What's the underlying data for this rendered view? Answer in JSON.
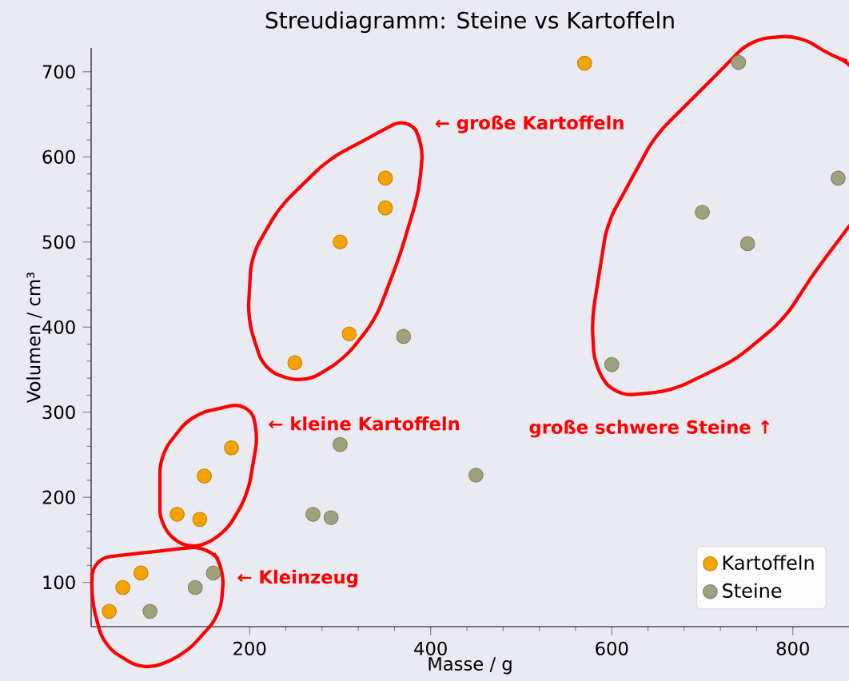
{
  "chart_data": {
    "type": "scatter",
    "title": "Streudiagramm: Steine vs Kartoffeln",
    "xlabel": "Masse / g",
    "ylabel": "Volumen / cm³",
    "xlim": [
      25,
      862
    ],
    "ylim": [
      48,
      728
    ],
    "xticks": [
      200,
      400,
      600,
      800
    ],
    "yticks": [
      100,
      200,
      300,
      400,
      500,
      600,
      700
    ],
    "grid": false,
    "legend": "bottom right",
    "marker": "circle",
    "series": [
      {
        "name": "Kartoffeln",
        "color": "#f5a300",
        "x": [
          570,
          350,
          350,
          300,
          310,
          250,
          180,
          150,
          120,
          145,
          80,
          60,
          45
        ],
        "values": [
          710,
          575,
          540,
          500,
          392,
          358,
          258,
          225,
          180,
          174,
          111,
          94,
          66
        ]
      },
      {
        "name": "Steine",
        "color": "#a0a07c",
        "x": [
          90,
          140,
          160,
          270,
          290,
          300,
          370,
          450,
          600,
          740,
          850,
          700,
          750
        ],
        "values": [
          66,
          94,
          111,
          180,
          176,
          262,
          389,
          226,
          356,
          711,
          575,
          535,
          498
        ]
      }
    ],
    "annotations": [
      "← große Kartoffeln",
      "← kleine Kartoffeln",
      "← Kleinzeug",
      "große schwere Steine ↑"
    ]
  }
}
